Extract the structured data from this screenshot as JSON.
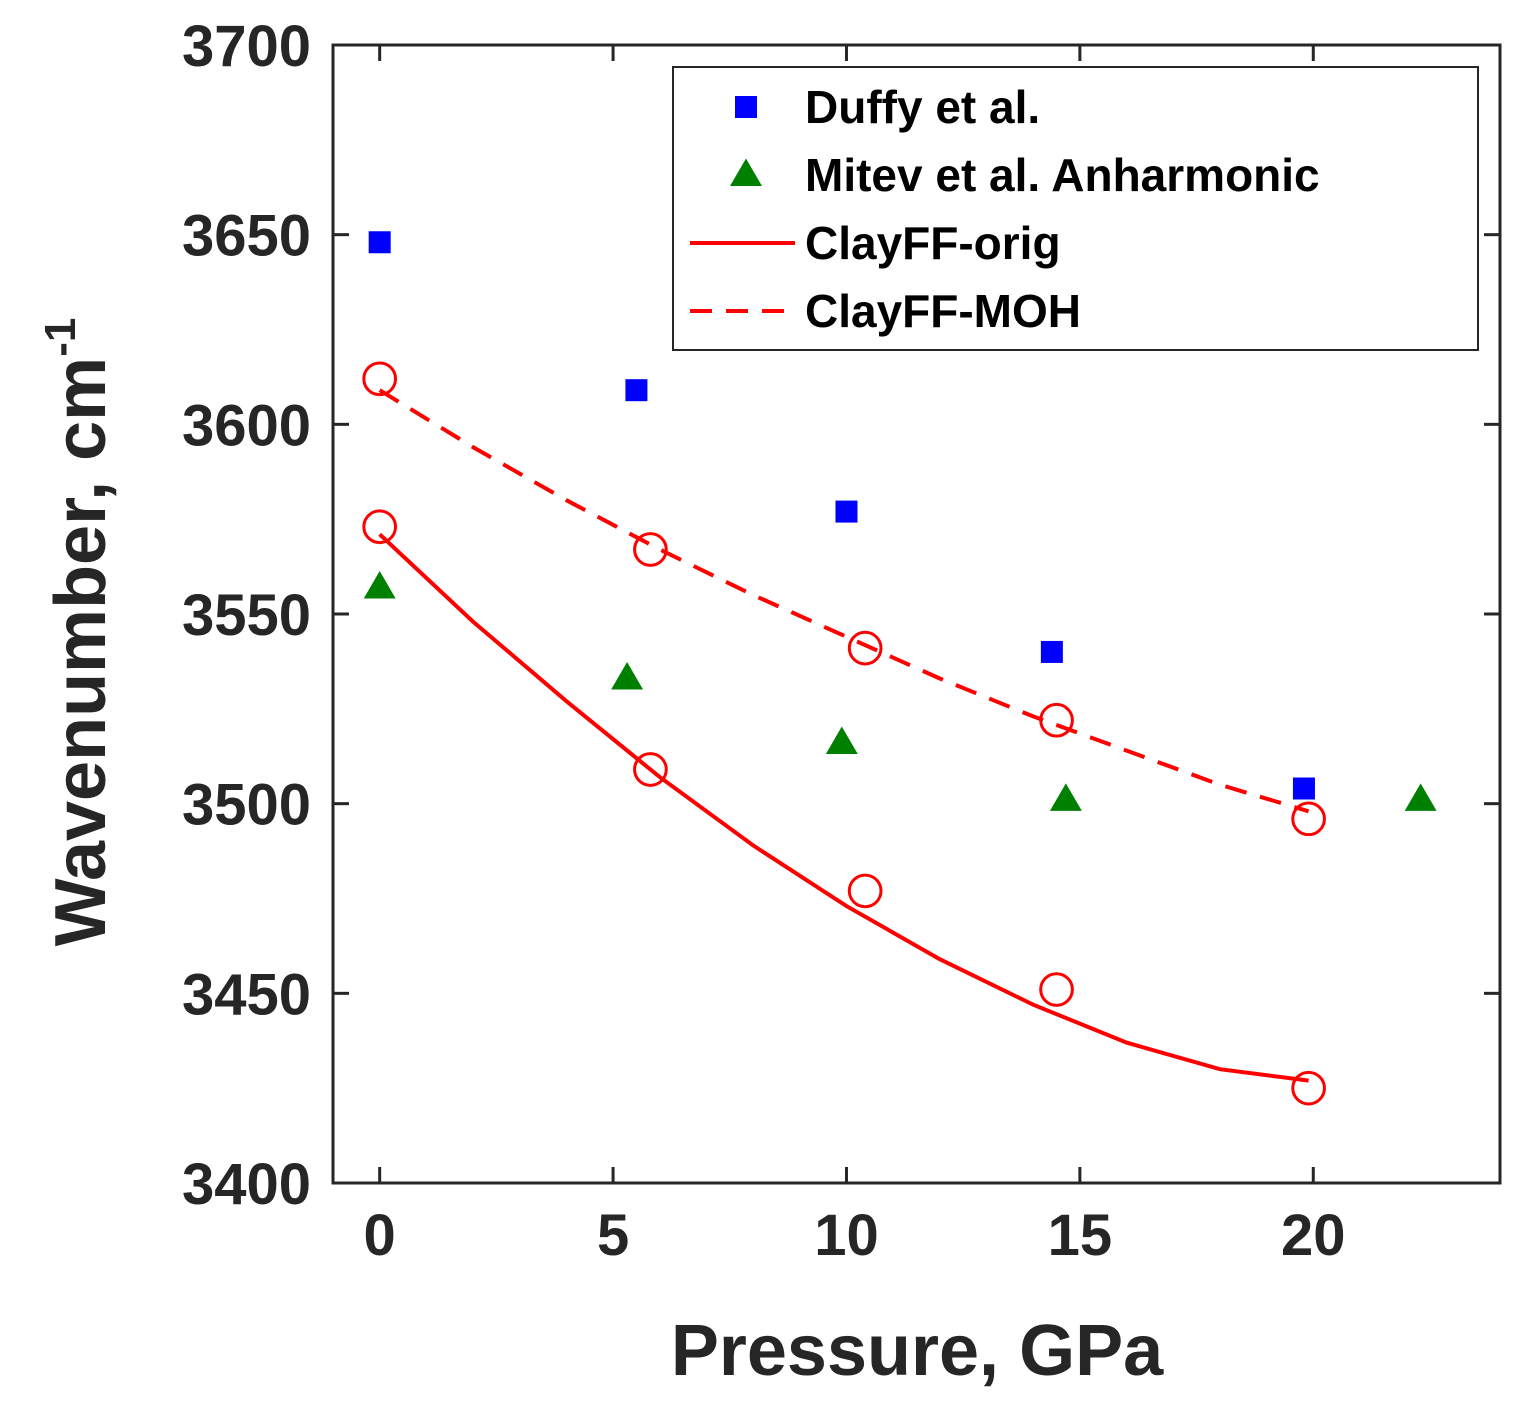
{
  "chart_data": {
    "type": "scatter",
    "title": "",
    "xlabel": "Pressure, GPa",
    "ylabel": "Wavenumber, cm",
    "ylabel_superscript": "-1",
    "xlim": [
      -1,
      24
    ],
    "ylim": [
      3400,
      3700
    ],
    "xticks": [
      0,
      5,
      10,
      15,
      20
    ],
    "yticks": [
      3400,
      3450,
      3500,
      3550,
      3600,
      3650,
      3700
    ],
    "xtick_labels": [
      "0",
      "5",
      "10",
      "15",
      "20"
    ],
    "ytick_labels": [
      "3400",
      "3450",
      "3500",
      "3550",
      "3600",
      "3650",
      "3700"
    ],
    "grid": false,
    "legend_position": "top-right",
    "series": [
      {
        "name": "Duffy et al.",
        "kind": "marker",
        "marker": "square",
        "color": "#0000ff",
        "x": [
          0,
          5.5,
          10,
          14.4,
          19.8
        ],
        "y": [
          3648,
          3609,
          3577,
          3540,
          3504
        ]
      },
      {
        "name": "Mitev et al. Anharmonic",
        "kind": "marker",
        "marker": "triangle",
        "color": "#008000",
        "x": [
          0,
          5.3,
          9.9,
          14.7,
          22.3
        ],
        "y": [
          3557,
          3533,
          3516,
          3501,
          3501
        ]
      },
      {
        "name": "ClayFF-orig",
        "kind": "line",
        "linestyle": "solid",
        "color": "#ff0000",
        "points_x": [
          0,
          5.8,
          10.4,
          14.5,
          19.9
        ],
        "points_y": [
          3573,
          3509,
          3477,
          3451,
          3425
        ],
        "fit_x": [
          0,
          2,
          4,
          6,
          8,
          10,
          12,
          14,
          16,
          18,
          19.9
        ],
        "fit_y": [
          3571,
          3548,
          3527,
          3507,
          3489,
          3473,
          3459,
          3447,
          3437,
          3430,
          3427
        ]
      },
      {
        "name": "ClayFF-MOH",
        "kind": "line",
        "linestyle": "dashed",
        "color": "#ff0000",
        "points_x": [
          0,
          5.8,
          10.4,
          14.5,
          19.9
        ],
        "points_y": [
          3612,
          3567,
          3541,
          3522,
          3496
        ],
        "fit_x": [
          0,
          2,
          4,
          6,
          8,
          10,
          12,
          14,
          16,
          18,
          19.9
        ],
        "fit_y": [
          3609,
          3594,
          3580,
          3567,
          3555,
          3544,
          3533,
          3523,
          3514,
          3505,
          3498
        ]
      }
    ]
  }
}
